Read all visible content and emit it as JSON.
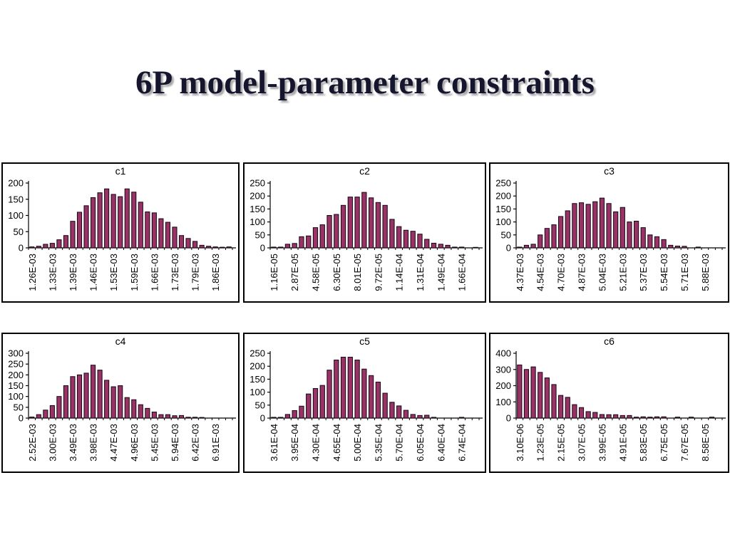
{
  "slide_title": "6P model-parameter constraints",
  "chart_data": [
    {
      "id": "c1",
      "title": "c1",
      "type": "bar",
      "bar_color": "#993366",
      "ylim": [
        0,
        200
      ],
      "yticks": [
        0,
        50,
        100,
        150,
        200
      ],
      "label_every": 3,
      "x_tick_labels": [
        "1.26E-03",
        "1.33E-03",
        "1.39E-03",
        "1.46E-03",
        "1.53E-03",
        "1.59E-03",
        "1.66E-03",
        "1.73E-03",
        "1.79E-03",
        "1.86E-03"
      ],
      "values": [
        3,
        5,
        11,
        14,
        25,
        38,
        82,
        110,
        130,
        155,
        170,
        182,
        165,
        158,
        182,
        172,
        141,
        111,
        108,
        90,
        79,
        64,
        38,
        29,
        20,
        8,
        5,
        3,
        2,
        3
      ]
    },
    {
      "id": "c2",
      "title": "c2",
      "type": "bar",
      "bar_color": "#993366",
      "ylim": [
        0,
        250
      ],
      "yticks": [
        0,
        50,
        100,
        150,
        200,
        250
      ],
      "label_every": 3,
      "x_tick_labels": [
        "1.16E-05",
        "2.87E-05",
        "4.58E-05",
        "6.30E-05",
        "8.01E-05",
        "9.72E-05",
        "1.14E-04",
        "1.31E-04",
        "1.49E-04",
        "1.66E-04"
      ],
      "values": [
        3,
        3,
        14,
        17,
        43,
        46,
        78,
        89,
        125,
        129,
        164,
        196,
        196,
        214,
        193,
        175,
        164,
        110,
        82,
        68,
        64,
        53,
        33,
        18,
        14,
        10,
        3,
        3,
        0,
        2
      ]
    },
    {
      "id": "c3",
      "title": "c3",
      "type": "bar",
      "bar_color": "#993366",
      "ylim": [
        0,
        250
      ],
      "yticks": [
        0,
        50,
        100,
        150,
        200,
        250
      ],
      "label_every": 3,
      "x_tick_labels": [
        "4.37E-03",
        "4.54E-03",
        "4.70E-03",
        "4.87E-03",
        "5.04E-03",
        "5.21E-03",
        "5.37E-03",
        "5.54E-03",
        "5.71E-03",
        "5.88E-03"
      ],
      "values": [
        3,
        10,
        14,
        50,
        75,
        89,
        121,
        143,
        171,
        174,
        168,
        178,
        192,
        171,
        139,
        156,
        100,
        103,
        78,
        50,
        43,
        32,
        10,
        7,
        6,
        0,
        3,
        0,
        0,
        0
      ]
    },
    {
      "id": "c4",
      "title": "c4",
      "type": "bar",
      "bar_color": "#993366",
      "ylim": [
        0,
        300
      ],
      "yticks": [
        0,
        50,
        100,
        150,
        200,
        250,
        300
      ],
      "label_every": 3,
      "x_tick_labels": [
        "2.52E-03",
        "3.00E-03",
        "3.49E-03",
        "3.98E-03",
        "4.47E-03",
        "4.96E-03",
        "5.45E-03",
        "5.94E-03",
        "6.42E-03",
        "6.91E-03"
      ],
      "values": [
        5,
        16,
        37,
        58,
        100,
        150,
        192,
        200,
        208,
        245,
        222,
        175,
        145,
        150,
        95,
        85,
        62,
        45,
        28,
        16,
        16,
        11,
        12,
        4,
        4,
        3,
        0,
        0,
        0,
        0
      ]
    },
    {
      "id": "c5",
      "title": "c5",
      "type": "bar",
      "bar_color": "#993366",
      "ylim": [
        0,
        250
      ],
      "yticks": [
        0,
        50,
        100,
        150,
        200,
        250
      ],
      "label_every": 3,
      "x_tick_labels": [
        "3.61E-04",
        "3.95E-04",
        "4.30E-04",
        "4.65E-04",
        "5.00E-04",
        "5.35E-04",
        "5.70E-04",
        "6.05E-04",
        "6.40E-04",
        "6.74E-04"
      ],
      "values": [
        3,
        3,
        14,
        29,
        46,
        93,
        114,
        126,
        185,
        224,
        235,
        235,
        224,
        189,
        164,
        139,
        96,
        61,
        47,
        30,
        14,
        10,
        11,
        3,
        0,
        0,
        0,
        3,
        0,
        0
      ]
    },
    {
      "id": "c6",
      "title": "c6",
      "type": "bar",
      "bar_color": "#993366",
      "ylim": [
        0,
        400
      ],
      "yticks": [
        0,
        100,
        200,
        300,
        400
      ],
      "label_every": 3,
      "x_tick_labels": [
        "3.10E-06",
        "1.23E-05",
        "2.15E-05",
        "3.07E-05",
        "3.99E-05",
        "4.91E-05",
        "5.83E-05",
        "6.75E-05",
        "7.67E-05",
        "8.58E-05"
      ],
      "values": [
        328,
        300,
        316,
        282,
        248,
        207,
        140,
        128,
        83,
        65,
        40,
        35,
        22,
        21,
        21,
        16,
        16,
        6,
        8,
        6,
        8,
        8,
        0,
        6,
        0,
        6,
        0,
        0,
        6,
        0
      ]
    }
  ]
}
